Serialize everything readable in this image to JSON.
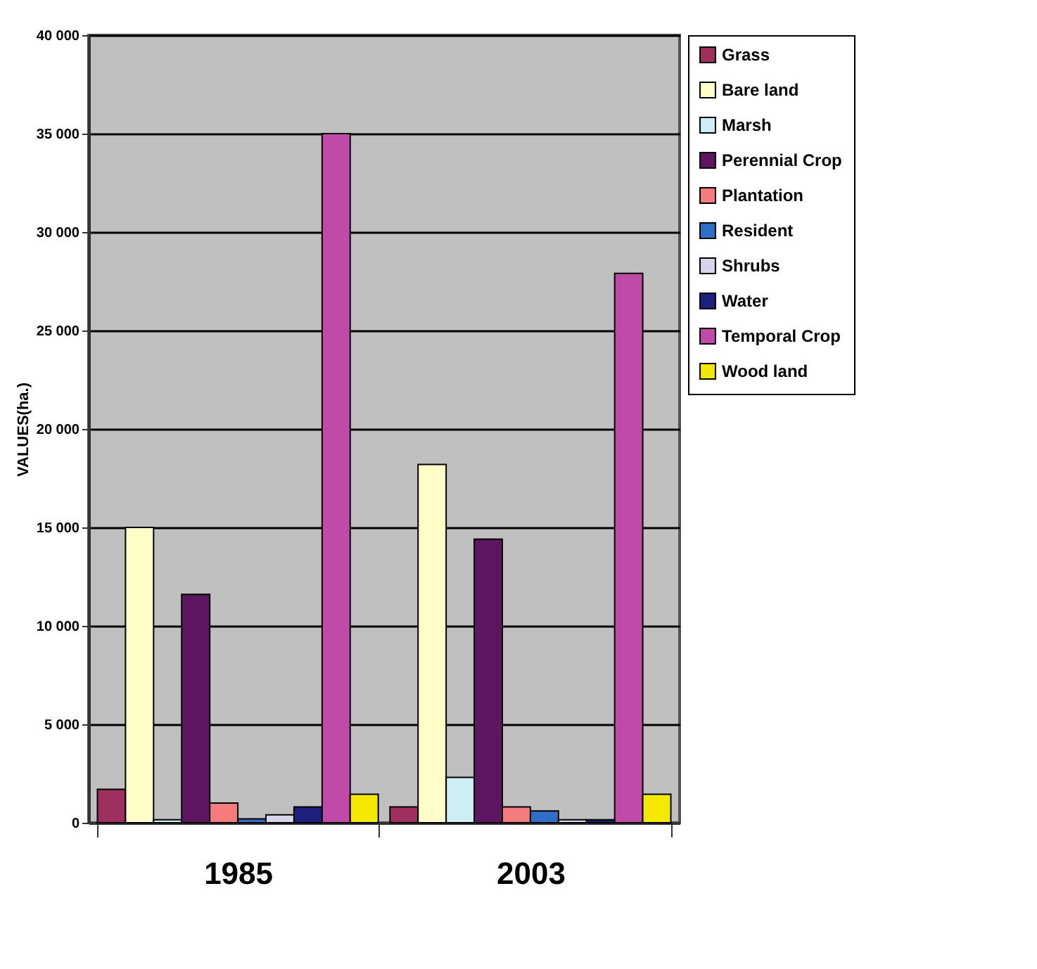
{
  "chart_data": {
    "type": "bar",
    "ylabel": "VALUES(ha.)",
    "categories": [
      "1985",
      "2003"
    ],
    "series": [
      {
        "name": "Grass",
        "color": "#9e2f5e",
        "values": [
          1700,
          800
        ]
      },
      {
        "name": "Bare land",
        "color": "#fffdc8",
        "values": [
          15000,
          18200
        ]
      },
      {
        "name": "Marsh",
        "color": "#cdeef4",
        "values": [
          150,
          2300
        ]
      },
      {
        "name": "Perennial Crop",
        "color": "#5e1660",
        "values": [
          11600,
          14400
        ]
      },
      {
        "name": "Plantation",
        "color": "#f47c7c",
        "values": [
          1000,
          800
        ]
      },
      {
        "name": "Resident",
        "color": "#2f6fc8",
        "values": [
          200,
          600
        ]
      },
      {
        "name": "Shrubs",
        "color": "#d8d4ea",
        "values": [
          400,
          150
        ]
      },
      {
        "name": "Water",
        "color": "#1c1f7c",
        "values": [
          800,
          150
        ]
      },
      {
        "name": "Temporal Crop",
        "color": "#c04aa8",
        "values": [
          35000,
          27900
        ]
      },
      {
        "name": "Wood land",
        "color": "#f5e800",
        "values": [
          1450,
          1450
        ]
      }
    ],
    "ylim": [
      0,
      40000
    ],
    "yticks": [
      {
        "value": 0,
        "label": "0"
      },
      {
        "value": 5000,
        "label": "5 000"
      },
      {
        "value": 10000,
        "label": "10 000"
      },
      {
        "value": 15000,
        "label": "15 000"
      },
      {
        "value": 20000,
        "label": "20 000"
      },
      {
        "value": 25000,
        "label": "25 000"
      },
      {
        "value": 30000,
        "label": "30 000"
      },
      {
        "value": 35000,
        "label": "35 000"
      },
      {
        "value": 40000,
        "label": "40 000"
      }
    ],
    "grid": "y",
    "legend": "top right"
  }
}
